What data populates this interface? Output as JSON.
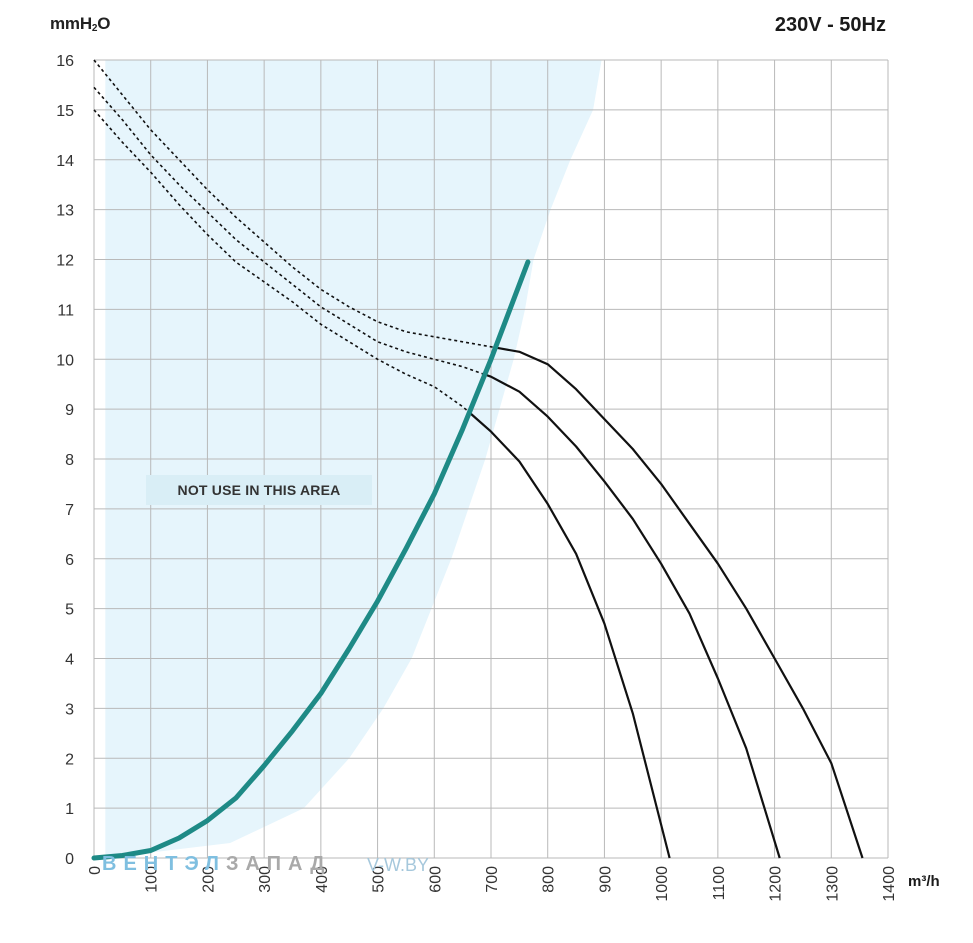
{
  "header": {
    "y_unit_prefix": "mmH",
    "y_unit_sub": "2",
    "y_unit_suffix": "O",
    "supply": "230V - 50Hz"
  },
  "footer": {
    "x_unit": "m³/h",
    "watermark_part1": "ВЕНТЭЛ",
    "watermark_part2": "ЗАПАД",
    "watermark_site": "V-W.BY"
  },
  "chart_data": {
    "type": "line",
    "xlabel": "m³/h",
    "ylabel": "mmH2O",
    "xlim": [
      0,
      1400
    ],
    "ylim": [
      0,
      16
    ],
    "x_ticks": [
      "0",
      "100",
      "200",
      "300",
      "400",
      "500",
      "600",
      "700",
      "800",
      "900",
      "1000",
      "1100",
      "1200",
      "1300",
      "1400"
    ],
    "y_ticks": [
      "0",
      "1",
      "2",
      "3",
      "4",
      "5",
      "6",
      "7",
      "8",
      "9",
      "10",
      "11",
      "12",
      "13",
      "14",
      "15",
      "16"
    ],
    "grid": true,
    "annotation": "NOT USE IN THIS AREA",
    "colors": {
      "grid": "#b9b9b9",
      "curve": "#111111",
      "system_curve": "#1e8a86",
      "area_fill": "#e6f5fc",
      "label_bg": "#d9eef6"
    },
    "restricted_area_boundary": [
      [
        20,
        16
      ],
      [
        895,
        16
      ],
      [
        880,
        15
      ],
      [
        840,
        14
      ],
      [
        805,
        13
      ],
      [
        775,
        12
      ],
      [
        760,
        11
      ],
      [
        740,
        10
      ],
      [
        715,
        9
      ],
      [
        690,
        8
      ],
      [
        660,
        7
      ],
      [
        630,
        6
      ],
      [
        595,
        5
      ],
      [
        560,
        4
      ],
      [
        510,
        3
      ],
      [
        450,
        2
      ],
      [
        370,
        1
      ],
      [
        240,
        0.3
      ],
      [
        20,
        0
      ]
    ],
    "system_curve": [
      [
        0,
        0
      ],
      [
        50,
        0.05
      ],
      [
        100,
        0.15
      ],
      [
        150,
        0.4
      ],
      [
        200,
        0.75
      ],
      [
        250,
        1.2
      ],
      [
        300,
        1.85
      ],
      [
        350,
        2.55
      ],
      [
        400,
        3.3
      ],
      [
        450,
        4.2
      ],
      [
        500,
        5.15
      ],
      [
        550,
        6.2
      ],
      [
        600,
        7.3
      ],
      [
        650,
        8.6
      ],
      [
        700,
        10.0
      ],
      [
        750,
        11.5
      ],
      [
        765,
        11.95
      ]
    ],
    "series": [
      {
        "values": [
          [
            0,
            16.0
          ],
          [
            50,
            15.3
          ],
          [
            100,
            14.6
          ],
          [
            150,
            14.0
          ],
          [
            200,
            13.4
          ],
          [
            250,
            12.85
          ],
          [
            300,
            12.35
          ],
          [
            350,
            11.85
          ],
          [
            400,
            11.4
          ],
          [
            450,
            11.05
          ],
          [
            500,
            10.75
          ],
          [
            550,
            10.55
          ],
          [
            600,
            10.45
          ],
          [
            650,
            10.35
          ],
          [
            700,
            10.25
          ],
          [
            750,
            10.15
          ],
          [
            800,
            9.9
          ],
          [
            850,
            9.4
          ],
          [
            900,
            8.8
          ],
          [
            950,
            8.2
          ],
          [
            1000,
            7.5
          ],
          [
            1050,
            6.7
          ],
          [
            1100,
            5.9
          ],
          [
            1150,
            5.0
          ],
          [
            1200,
            4.0
          ],
          [
            1250,
            3.0
          ],
          [
            1300,
            1.9
          ],
          [
            1355,
            0.0
          ]
        ]
      },
      {
        "values": [
          [
            0,
            15.45
          ],
          [
            50,
            14.8
          ],
          [
            100,
            14.1
          ],
          [
            150,
            13.5
          ],
          [
            200,
            12.95
          ],
          [
            250,
            12.4
          ],
          [
            300,
            11.95
          ],
          [
            350,
            11.5
          ],
          [
            400,
            11.05
          ],
          [
            450,
            10.7
          ],
          [
            500,
            10.35
          ],
          [
            550,
            10.15
          ],
          [
            600,
            10.0
          ],
          [
            650,
            9.85
          ],
          [
            700,
            9.65
          ],
          [
            750,
            9.35
          ],
          [
            800,
            8.85
          ],
          [
            850,
            8.25
          ],
          [
            900,
            7.55
          ],
          [
            950,
            6.8
          ],
          [
            1000,
            5.9
          ],
          [
            1050,
            4.9
          ],
          [
            1100,
            3.6
          ],
          [
            1150,
            2.2
          ],
          [
            1209,
            0.0
          ]
        ]
      },
      {
        "values": [
          [
            0,
            15.0
          ],
          [
            50,
            14.35
          ],
          [
            100,
            13.75
          ],
          [
            150,
            13.1
          ],
          [
            200,
            12.5
          ],
          [
            250,
            11.95
          ],
          [
            300,
            11.55
          ],
          [
            350,
            11.15
          ],
          [
            400,
            10.7
          ],
          [
            450,
            10.35
          ],
          [
            500,
            10.0
          ],
          [
            550,
            9.7
          ],
          [
            600,
            9.45
          ],
          [
            650,
            9.05
          ],
          [
            700,
            8.55
          ],
          [
            750,
            7.95
          ],
          [
            800,
            7.1
          ],
          [
            850,
            6.1
          ],
          [
            900,
            4.7
          ],
          [
            950,
            2.9
          ],
          [
            1015,
            0.0
          ]
        ]
      }
    ]
  }
}
